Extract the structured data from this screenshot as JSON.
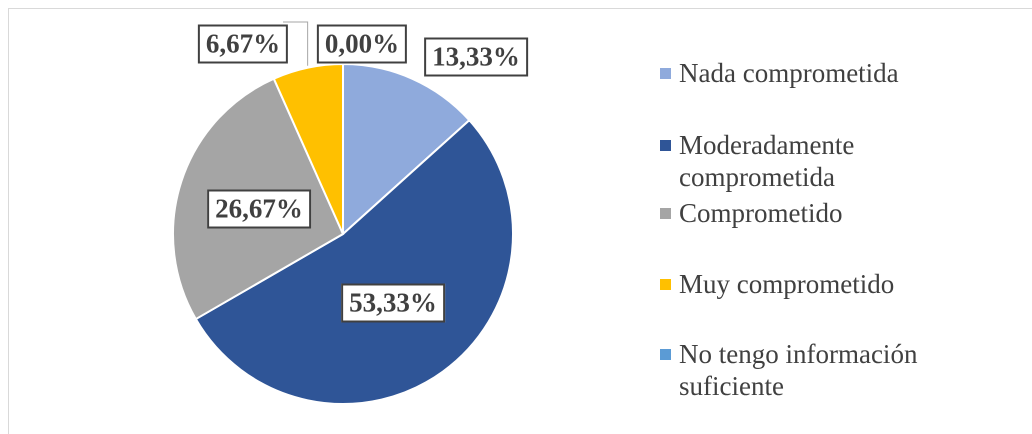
{
  "chart_data": {
    "type": "pie",
    "categories": [
      "Nada comprometida",
      "Moderadamente comprometida",
      "Comprometido",
      "Muy comprometido",
      "No tengo información suficiente"
    ],
    "values": [
      13.33,
      53.33,
      26.67,
      6.67,
      0.0
    ],
    "value_labels": [
      "13,33%",
      "53,33%",
      "26,67%",
      "6,67%",
      "0,00%"
    ],
    "colors": [
      "#8faadc",
      "#2f5597",
      "#a5a5a5",
      "#ffc000",
      "#5b9bd5"
    ],
    "legend": "right"
  }
}
